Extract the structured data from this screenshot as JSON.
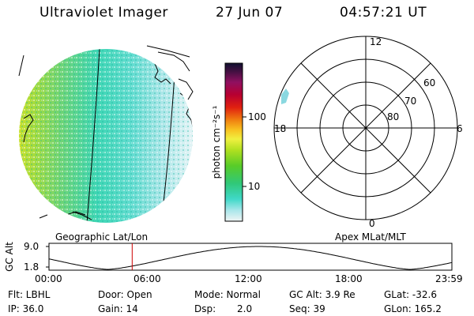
{
  "header": {
    "instrument": "Ultraviolet Imager",
    "date": "27 Jun 07",
    "time": "04:57:21 UT"
  },
  "colorbar": {
    "unit_label": "photon cm⁻²s⁻¹",
    "tick_labels": [
      "100",
      "10"
    ]
  },
  "polar_plot": {
    "mlt_labels": {
      "top": "12",
      "left": "18",
      "right": "6",
      "bottom": "0"
    },
    "lat_labels": [
      "60",
      "70",
      "80"
    ]
  },
  "panel_labels": {
    "left": "Geographic Lat/Lon",
    "right": "Apex MLat/MLT"
  },
  "altitude_plot": {
    "ylabel": "GC Alt",
    "y_ticks": [
      "9.0",
      "1.8"
    ],
    "x_ticks": [
      "00:00",
      "06:00",
      "12:00",
      "18:00",
      "23:59"
    ],
    "current_time_hours": 4.956
  },
  "status": {
    "flt": "Flt: LBHL",
    "ip": "IP: 36.0",
    "door": "Door: Open",
    "gain": "Gain: 14",
    "mode": "Mode: Normal",
    "dsp_label": "Dsp:",
    "dsp_value": "2.0",
    "gc_alt": "GC Alt: 3.9 Re",
    "seq": "Seq: 39",
    "glat": "GLat: -32.6",
    "glon": "GLon: 165.2"
  },
  "colors": {
    "marker": "#cc0000",
    "line": "#000000"
  }
}
